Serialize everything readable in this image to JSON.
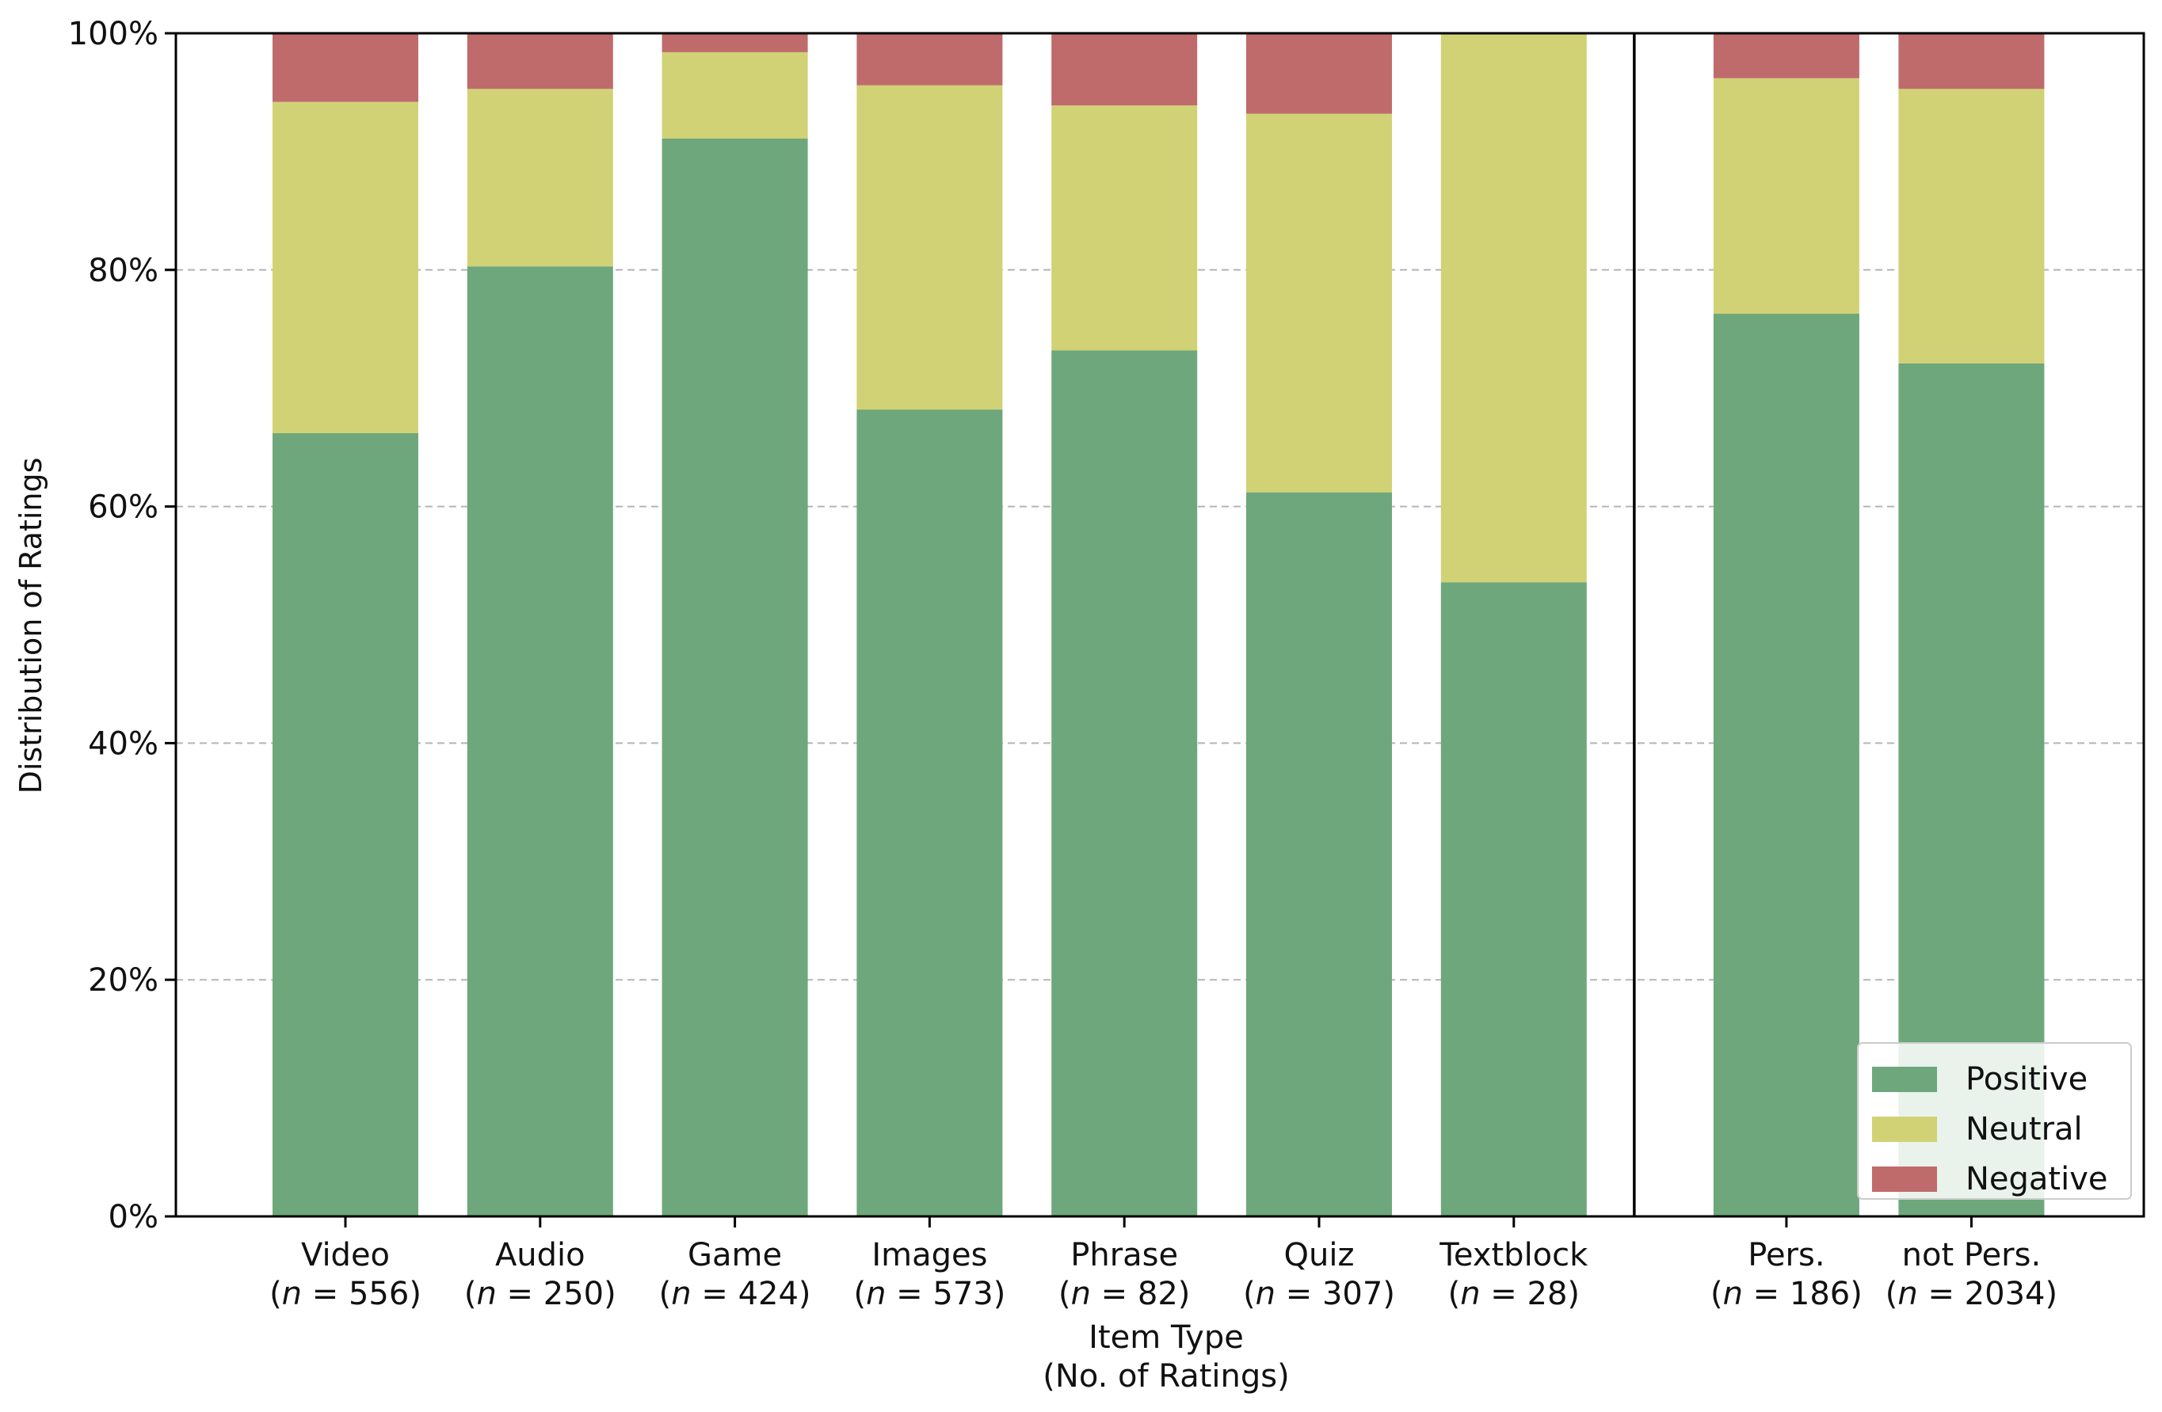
{
  "chart_data": {
    "type": "bar",
    "stacked": true,
    "ylabel": "Distribution of Ratings",
    "xlabel_line1": "Item Type",
    "xlabel_line2": "(No. of Ratings)",
    "ylim": [
      0,
      100
    ],
    "y_ticks": [
      0,
      20,
      40,
      60,
      80,
      100
    ],
    "y_tick_labels": [
      "0%",
      "20%",
      "40%",
      "60%",
      "80%",
      "100%"
    ],
    "grid": "y-dashed",
    "categories": [
      {
        "name": "Video",
        "n_label": "(n = 556)",
        "n_prefix": "(",
        "n_var": "n",
        "n_rest": " = 556)"
      },
      {
        "name": "Audio",
        "n_label": "(n = 250)",
        "n_prefix": "(",
        "n_var": "n",
        "n_rest": " = 250)"
      },
      {
        "name": "Game",
        "n_label": "(n = 424)",
        "n_prefix": "(",
        "n_var": "n",
        "n_rest": " = 424)"
      },
      {
        "name": "Images",
        "n_label": "(n = 573)",
        "n_prefix": "(",
        "n_var": "n",
        "n_rest": " = 573)"
      },
      {
        "name": "Phrase",
        "n_label": "(n = 82)",
        "n_prefix": "(",
        "n_var": "n",
        "n_rest": " = 82)"
      },
      {
        "name": "Quiz",
        "n_label": "(n = 307)",
        "n_prefix": "(",
        "n_var": "n",
        "n_rest": " = 307)"
      },
      {
        "name": "Textblock",
        "n_label": "(n = 28)",
        "n_prefix": "(",
        "n_var": "n",
        "n_rest": " = 28)"
      },
      {
        "name": "Pers.",
        "n_label": "(n = 186)",
        "n_prefix": "(",
        "n_var": "n",
        "n_rest": " = 186)"
      },
      {
        "name": "not Pers.",
        "n_label": "(n = 2034)",
        "n_prefix": "(",
        "n_var": "n",
        "n_rest": " = 2034)"
      }
    ],
    "category_positions": [
      0,
      1,
      2,
      3,
      4,
      5,
      6,
      7.4,
      8.35
    ],
    "separator_after_index": 6,
    "series": [
      {
        "name": "Positive",
        "color": "#6ea77b",
        "values": [
          66.2,
          80.3,
          91.1,
          68.2,
          73.2,
          61.2,
          53.6,
          76.3,
          72.1
        ]
      },
      {
        "name": "Neutral",
        "color": "#d1d275",
        "values": [
          28.0,
          15.0,
          7.3,
          27.4,
          20.7,
          32.0,
          46.4,
          19.9,
          23.2
        ]
      },
      {
        "name": "Negative",
        "color": "#bf6b6c",
        "values": [
          5.8,
          4.7,
          1.6,
          4.4,
          6.1,
          6.8,
          0.0,
          3.8,
          4.7
        ]
      }
    ],
    "legend": {
      "placement": "lower-right",
      "entries": [
        "Positive",
        "Neutral",
        "Negative"
      ]
    }
  }
}
